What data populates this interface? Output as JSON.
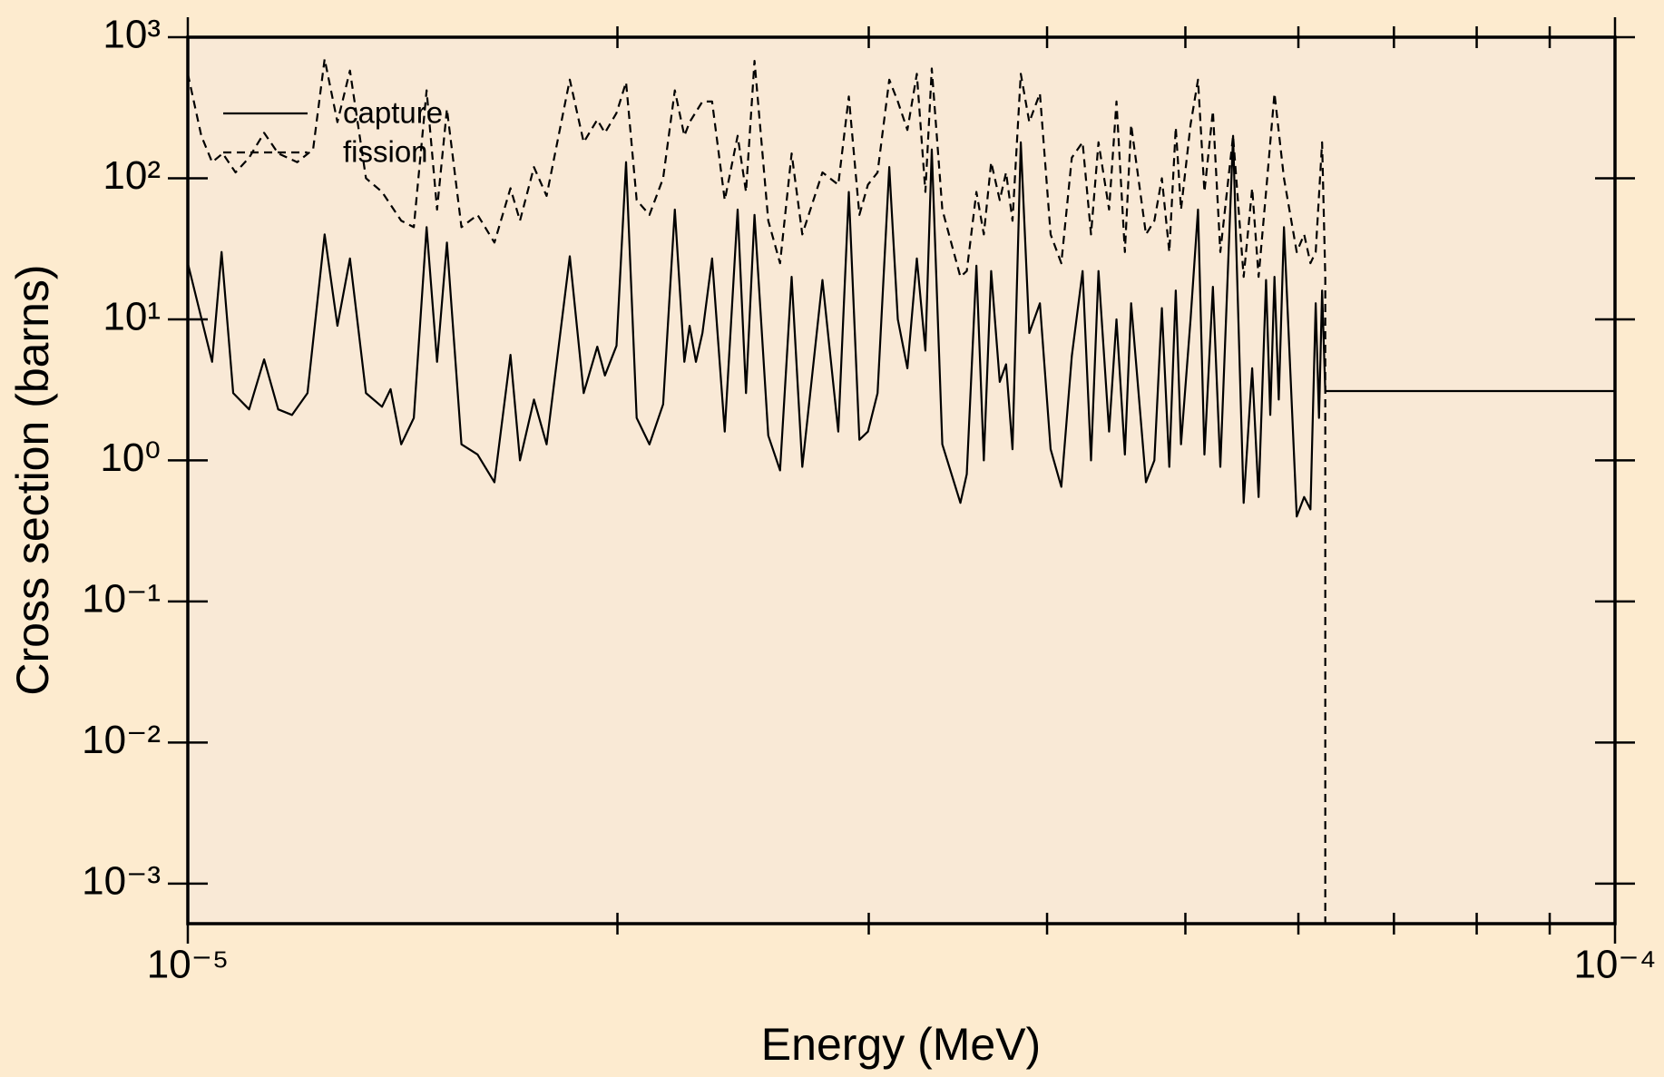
{
  "chart_data": {
    "type": "line",
    "xlabel": "Energy (MeV)",
    "ylabel": "Cross section (barns)",
    "xscale": "log",
    "yscale": "log",
    "xlim": [
      1e-05,
      0.0001
    ],
    "ylim": [
      0.00052,
      1000
    ],
    "xticks": [
      {
        "value": 1e-05,
        "label": "10⁻⁵"
      },
      {
        "value": 0.0001,
        "label": "10⁻⁴"
      }
    ],
    "xminor_ticks": [
      2e-05,
      3e-05,
      4e-05,
      5e-05,
      6e-05,
      7e-05,
      8e-05,
      9e-05
    ],
    "yticks": [
      {
        "value": 0.001,
        "label": "10⁻³"
      },
      {
        "value": 0.01,
        "label": "10⁻²"
      },
      {
        "value": 0.1,
        "label": "10⁻¹"
      },
      {
        "value": 1,
        "label": "10⁰"
      },
      {
        "value": 10,
        "label": "10¹"
      },
      {
        "value": 100,
        "label": "10²"
      },
      {
        "value": 1000,
        "label": "10³"
      }
    ],
    "legend": "upper left",
    "series": [
      {
        "name": "capture",
        "color": "#000000",
        "dash": false,
        "x": [
          1e-05,
          1.04e-05,
          1.056e-05,
          1.076e-05,
          1.104e-05,
          1.131e-05,
          1.157e-05,
          1.183e-05,
          1.213e-05,
          1.247e-05,
          1.273e-05,
          1.299e-05,
          1.333e-05,
          1.368e-05,
          1.387e-05,
          1.411e-05,
          1.44e-05,
          1.47e-05,
          1.495e-05,
          1.519e-05,
          1.555e-05,
          1.596e-05,
          1.64e-05,
          1.683e-05,
          1.709e-05,
          1.748e-05,
          1.784e-05,
          1.852e-05,
          1.894e-05,
          1.936e-05,
          1.96e-05,
          1.997e-05,
          2.028e-05,
          2.063e-05,
          2.106e-05,
          2.153e-05,
          2.194e-05,
          2.228e-05,
          2.247e-05,
          2.27e-05,
          2.294e-05,
          2.33e-05,
          2.378e-05,
          2.428e-05,
          2.461e-05,
          2.495e-05,
          2.551e-05,
          2.6e-05,
          2.649e-05,
          2.695e-05,
          2.784e-05,
          2.856e-05,
          2.905e-05,
          2.955e-05,
          2.996e-05,
          3.043e-05,
          3.101e-05,
          3.144e-05,
          3.193e-05,
          3.242e-05,
          3.287e-05,
          3.321e-05,
          3.378e-05,
          3.478e-05,
          3.514e-05,
          3.569e-05,
          3.612e-05,
          3.655e-05,
          3.706e-05,
          3.744e-05,
          3.783e-05,
          3.834e-05,
          3.887e-05,
          3.954e-05,
          4.023e-05,
          4.093e-05,
          4.163e-05,
          4.236e-05,
          4.294e-05,
          4.346e-05,
          4.421e-05,
          4.474e-05,
          4.535e-05,
          4.581e-05,
          4.692e-05,
          4.756e-05,
          4.814e-05,
          4.872e-05,
          4.923e-05,
          4.965e-05,
          5.042e-05,
          5.103e-05,
          5.156e-05,
          5.227e-05,
          5.29e-05,
          5.4e-05,
          5.493e-05,
          5.569e-05,
          5.627e-05,
          5.695e-05,
          5.734e-05,
          5.773e-05,
          5.813e-05,
          5.862e-05,
          5.984e-05,
          6.056e-05,
          6.118e-05,
          6.17e-05,
          6.203e-05,
          6.234e-05,
          6.266e-05,
          0.0001
        ],
        "values": [
          25,
          5,
          30,
          3,
          2.3,
          5.2,
          2.3,
          2.1,
          3,
          40,
          9,
          27,
          3,
          2.4,
          3.2,
          1.3,
          2,
          45,
          5,
          35,
          1.3,
          1.1,
          0.7,
          5.6,
          1,
          2.7,
          1.3,
          28,
          3,
          6.4,
          4,
          6.5,
          130,
          2,
          1.3,
          2.5,
          60,
          5,
          9,
          5,
          8,
          27,
          1.6,
          60,
          3,
          55,
          1.5,
          0.85,
          20,
          0.9,
          19,
          1.6,
          80,
          1.4,
          1.6,
          3,
          120,
          10,
          4.5,
          27,
          6,
          160,
          1.3,
          0.5,
          0.8,
          24,
          1,
          22,
          3.6,
          4.8,
          1.2,
          180,
          8,
          13,
          1.2,
          0.65,
          5.5,
          22,
          1,
          22,
          1.6,
          10,
          1.1,
          13,
          0.7,
          1,
          12,
          0.9,
          16,
          1.3,
          10,
          60,
          1.1,
          17,
          0.9,
          200,
          0.5,
          4.5,
          0.55,
          19,
          2.1,
          20,
          2.7,
          45,
          0.4,
          0.55,
          0.45,
          13,
          2,
          16,
          3.1,
          3.1
        ]
      },
      {
        "name": "fission",
        "color": "#000000",
        "dash": true,
        "x": [
          1e-05,
          1.022e-05,
          1.04e-05,
          1.058e-05,
          1.08e-05,
          1.104e-05,
          1.131e-05,
          1.157e-05,
          1.193e-05,
          1.224e-05,
          1.247e-05,
          1.273e-05,
          1.299e-05,
          1.333e-05,
          1.368e-05,
          1.411e-05,
          1.44e-05,
          1.47e-05,
          1.495e-05,
          1.519e-05,
          1.555e-05,
          1.596e-05,
          1.64e-05,
          1.683e-05,
          1.709e-05,
          1.748e-05,
          1.784e-05,
          1.852e-05,
          1.894e-05,
          1.936e-05,
          1.96e-05,
          1.997e-05,
          2.028e-05,
          2.063e-05,
          2.106e-05,
          2.153e-05,
          2.194e-05,
          2.228e-05,
          2.247e-05,
          2.294e-05,
          2.33e-05,
          2.378e-05,
          2.428e-05,
          2.461e-05,
          2.495e-05,
          2.551e-05,
          2.6e-05,
          2.649e-05,
          2.695e-05,
          2.784e-05,
          2.856e-05,
          2.905e-05,
          2.955e-05,
          2.996e-05,
          3.043e-05,
          3.101e-05,
          3.144e-05,
          3.193e-05,
          3.242e-05,
          3.287e-05,
          3.321e-05,
          3.378e-05,
          3.478e-05,
          3.514e-05,
          3.569e-05,
          3.612e-05,
          3.655e-05,
          3.706e-05,
          3.744e-05,
          3.783e-05,
          3.834e-05,
          3.887e-05,
          3.954e-05,
          4.023e-05,
          4.093e-05,
          4.163e-05,
          4.236e-05,
          4.294e-05,
          4.346e-05,
          4.421e-05,
          4.474e-05,
          4.535e-05,
          4.581e-05,
          4.692e-05,
          4.756e-05,
          4.814e-05,
          4.872e-05,
          4.923e-05,
          4.965e-05,
          5.042e-05,
          5.103e-05,
          5.156e-05,
          5.227e-05,
          5.29e-05,
          5.4e-05,
          5.493e-05,
          5.569e-05,
          5.627e-05,
          5.695e-05,
          5.773e-05,
          5.862e-05,
          5.984e-05,
          6.056e-05,
          6.118e-05,
          6.17e-05,
          6.234e-05,
          6.266e-05,
          6.266e-05
        ],
        "values": [
          550,
          200,
          130,
          150,
          110,
          140,
          210,
          150,
          130,
          160,
          700,
          250,
          580,
          100,
          80,
          50,
          45,
          420,
          60,
          310,
          45,
          55,
          35,
          85,
          50,
          120,
          75,
          500,
          180,
          260,
          210,
          290,
          480,
          70,
          55,
          100,
          420,
          200,
          250,
          350,
          350,
          70,
          200,
          80,
          680,
          50,
          25,
          150,
          40,
          110,
          90,
          380,
          55,
          90,
          110,
          500,
          350,
          220,
          550,
          80,
          600,
          60,
          20,
          22,
          80,
          40,
          130,
          70,
          110,
          50,
          550,
          250,
          400,
          40,
          25,
          140,
          180,
          40,
          180,
          60,
          350,
          30,
          240,
          40,
          50,
          100,
          30,
          230,
          60,
          240,
          500,
          80,
          300,
          30,
          200,
          20,
          85,
          20,
          80,
          400,
          100,
          30,
          40,
          25,
          30,
          180,
          20,
          0.0001
        ]
      }
    ]
  }
}
